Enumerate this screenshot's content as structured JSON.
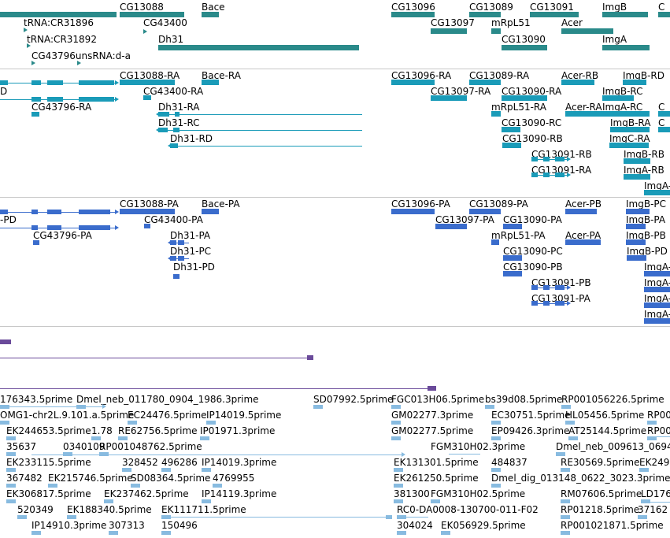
{
  "colors": {
    "gene": "#2a8a8a",
    "transcript": "#1a9bb8",
    "protein": "#3a6ccc",
    "align": "#6a4a9a",
    "est": "#88bbe0",
    "separator": "#c8c8c8",
    "label": "#000000"
  },
  "tracks": {
    "genes": {
      "labels": [
        "CG13088",
        "Bace",
        "CG13096",
        "CG13089",
        "CG13091",
        "ImgB",
        "C",
        "tRNA:CR31896",
        "CG43400",
        "CG13097",
        "mRpL51",
        "Acer",
        "tRNA:CR31892",
        "Dh31",
        "CG13090",
        "ImgA",
        "CG43796unsRNA:d-a"
      ]
    },
    "transcripts": {
      "labels": [
        "CG13088-RA",
        "Bace-RA",
        "CG13096-RA",
        "CG13089-RA",
        "Acer-RB",
        "ImgB-RD",
        "D",
        "CG43400-RA",
        "CG13097-RA",
        "CG13090-RA",
        "ImgB-RC",
        "CG43796-RA",
        "Dh31-RA",
        "mRpL51-RA",
        "Acer-RA",
        "ImgA-RC",
        "C",
        "Dh31-RC",
        "CG13090-RC",
        "ImgB-RA",
        "C",
        "Dh31-RD",
        "CG13090-RB",
        "ImgC-RA",
        "CG13091-RB",
        "ImgB-RB",
        "CG13091-RA",
        "ImgA-RB",
        "ImgA-"
      ]
    },
    "proteins": {
      "labels": [
        "CG13088-PA",
        "Bace-PA",
        "CG13096-PA",
        "CG13089-PA",
        "Acer-PB",
        "ImgB-PC",
        "-PD",
        "CG43400-PA",
        "CG13097-PA",
        "CG13090-PA",
        "ImgB-PA",
        "CG43796-PA",
        "Dh31-PA",
        "mRpL51-PA",
        "Acer-PA",
        "ImgB-PB",
        "Dh31-PC",
        "CG13090-PC",
        "ImgB-PD",
        "Dh31-PD",
        "CG13090-PB",
        "ImgA-",
        "CG13091-PB",
        "ImgA-",
        "CG13091-PA",
        "ImgA-",
        "ImgA-"
      ]
    },
    "ests": {
      "labels": [
        "176343.5prime",
        "Dmel_neb_011780_0904_1986.3prime",
        "SD07992.5prime",
        "FGC013H06.5prime",
        "bs39d08.5prime",
        "RP001056226.5prime",
        "OMG1-chr2L.9.101.a.5prime",
        "EC24476.5prime",
        "IP14019.5prime",
        "GM02277.3prime",
        "EC30751.5prime",
        "HL05456.5prime",
        "RP00",
        "EK244653.5prime",
        "1.78",
        "RE62756.5prime",
        "IP01971.3prime",
        "GM02277.5prime",
        "EP09426.3prime",
        "AT25144.5prime",
        "RP00",
        "35637",
        "0340109",
        "RP001048762.5prime",
        "FGM310H02.3prime",
        "Dmel_neb_009613_0694",
        "EK233115.5prime",
        "328452",
        "496286",
        "IP14019.3prime",
        "EK131301.5prime",
        "484837",
        "RE30569.5prime",
        "EK249",
        "367482",
        "EK215746.5prime",
        "SD08364.5prime",
        "4769955",
        "EK261250.5prime",
        "Dmel_dig_013148_0622_3023.3prime",
        "EK306817.5prime",
        "EK237462.5prime",
        "IP14119.3prime",
        "381300",
        "FGM310H02.5prime",
        "RM07606.5prime",
        "LD176",
        "520349",
        "EK188340.5prime",
        "EK111711.5prime",
        "RC0-DA0008-130700-011-F02",
        "RP01218.5prime",
        "37162",
        "IP14910.3prime",
        "307313",
        "150496",
        "304024",
        "EK056929.5prime",
        "RP001021871.5prime"
      ]
    }
  }
}
